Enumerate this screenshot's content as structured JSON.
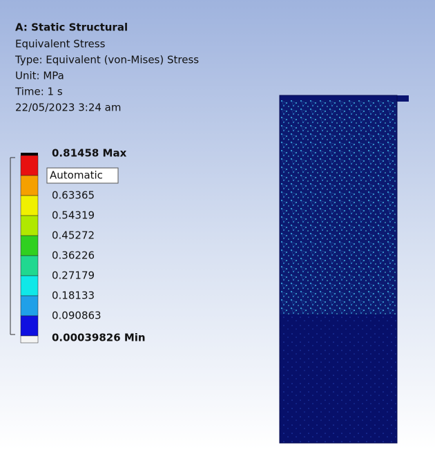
{
  "header": {
    "title": "A: Static Structural",
    "lines": [
      "Equivalent Stress",
      "Type: Equivalent (von-Mises) Stress",
      "Unit: MPa",
      "Time: 1 s",
      "22/05/2023 3:24 am"
    ]
  },
  "legend": {
    "labels": [
      "0.81458 Max",
      "Automatic",
      "0.63365",
      "0.54319",
      "0.45272",
      "0.36226",
      "0.27179",
      "0.18133",
      "0.090863",
      "0.00039826 Min"
    ]
  }
}
